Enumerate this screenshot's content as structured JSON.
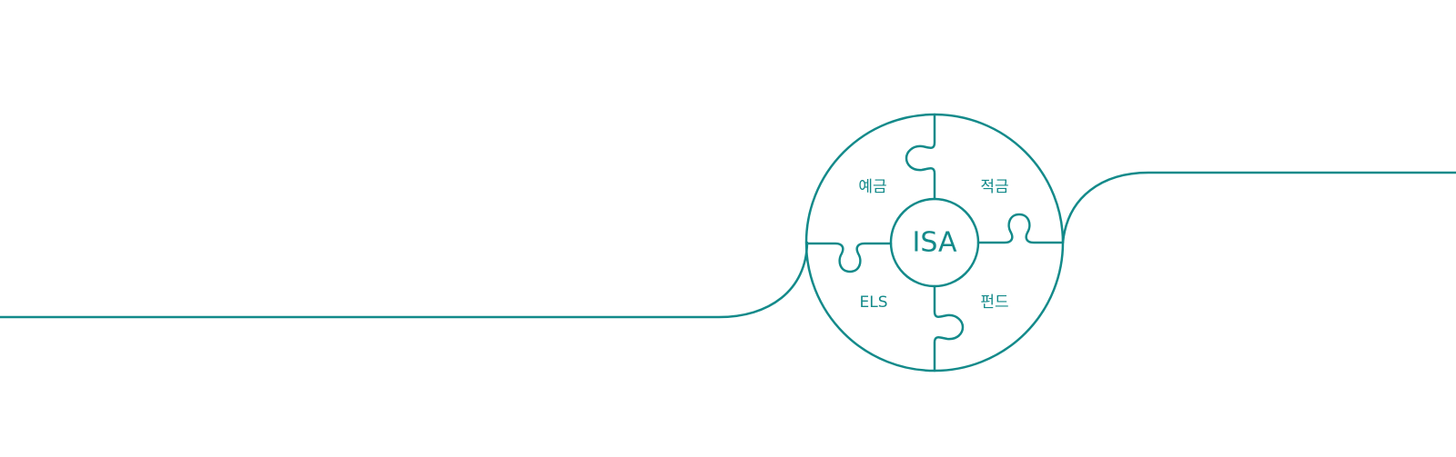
{
  "colors": {
    "accent": "#138a8a",
    "background": "#ffffff"
  },
  "diagram": {
    "hub": {
      "label": "ISA"
    },
    "segments": {
      "top_left": {
        "label": "예금"
      },
      "top_right": {
        "label": "적금"
      },
      "bottom_left": {
        "label": "ELS"
      },
      "bottom_right": {
        "label": "펀드"
      }
    }
  }
}
